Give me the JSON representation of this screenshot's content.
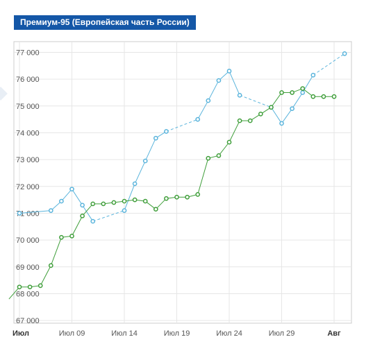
{
  "header": {
    "title": "Премиум-95 (Европейская часть России)"
  },
  "colors": {
    "title_bg": "#1457a7",
    "blue_series": "#5ab4dc",
    "green_series": "#3f9e3a",
    "grid": "#e6e6e6",
    "frame": "#cccccc"
  },
  "chart_data": {
    "type": "line",
    "title": "Премиум-95 (Европейская часть России)",
    "xlabel": "",
    "ylabel": "",
    "ylim": [
      66900,
      77400
    ],
    "xlim": [
      1,
      32.6
    ],
    "grid": true,
    "y_ticks": [
      67000,
      68000,
      69000,
      70000,
      71000,
      72000,
      73000,
      74000,
      75000,
      76000,
      77000
    ],
    "y_tick_labels": [
      "67 000",
      "68 000",
      "69 000",
      "70 000",
      "71 000",
      "72 000",
      "73 000",
      "74 000",
      "75 000",
      "76 000",
      "77 000"
    ],
    "x_ticks": [
      {
        "day": 1,
        "label": "Июл",
        "bold": true
      },
      {
        "day": 6,
        "label": "Июл 09",
        "bold": false
      },
      {
        "day": 11,
        "label": "Июл 14",
        "bold": false
      },
      {
        "day": 16,
        "label": "Июл 19",
        "bold": false
      },
      {
        "day": 21,
        "label": "Июл 24",
        "bold": false
      },
      {
        "day": 26,
        "label": "Июл 29",
        "bold": false
      },
      {
        "day": 31,
        "label": "Авг",
        "bold": true
      }
    ],
    "series": [
      {
        "color": "#5ab4dc",
        "points": [
          [
            1,
            71000
          ],
          [
            4,
            71100
          ],
          [
            5,
            71450
          ],
          [
            6,
            71900
          ],
          [
            7,
            71300
          ],
          [
            8,
            70700
          ],
          [
            11,
            71100
          ],
          [
            12,
            72100
          ],
          [
            13,
            72950
          ],
          [
            14,
            73800
          ],
          [
            15,
            74050
          ],
          [
            18,
            74500
          ],
          [
            19,
            75200
          ],
          [
            20,
            75950
          ],
          [
            21,
            76300
          ],
          [
            22,
            75400
          ],
          [
            25,
            74950
          ],
          [
            26,
            74350
          ],
          [
            27,
            74900
          ],
          [
            28,
            75500
          ],
          [
            29,
            76150
          ],
          [
            32,
            76950
          ]
        ],
        "dashed_gaps": [
          [
            8,
            11
          ],
          [
            15,
            18
          ],
          [
            22,
            25
          ],
          [
            29,
            32
          ]
        ]
      },
      {
        "color": "#3f9e3a",
        "points": [
          [
            0,
            67800
          ],
          [
            1,
            68250
          ],
          [
            2,
            68250
          ],
          [
            3,
            68300
          ],
          [
            4,
            69050
          ],
          [
            5,
            70100
          ],
          [
            6,
            70150
          ],
          [
            7,
            70900
          ],
          [
            8,
            71350
          ],
          [
            9,
            71350
          ],
          [
            10,
            71400
          ],
          [
            11,
            71450
          ],
          [
            12,
            71500
          ],
          [
            13,
            71450
          ],
          [
            14,
            71150
          ],
          [
            15,
            71550
          ],
          [
            16,
            71600
          ],
          [
            17,
            71600
          ],
          [
            18,
            71700
          ],
          [
            19,
            73050
          ],
          [
            20,
            73150
          ],
          [
            21,
            73650
          ],
          [
            22,
            74450
          ],
          [
            23,
            74450
          ],
          [
            24,
            74700
          ],
          [
            25,
            74950
          ],
          [
            26,
            75500
          ],
          [
            27,
            75500
          ],
          [
            28,
            75650
          ],
          [
            29,
            75350
          ],
          [
            30,
            75350
          ],
          [
            31,
            75350
          ]
        ],
        "dashed_gaps": [
          [
            26,
            28
          ],
          [
            28,
            31
          ]
        ]
      }
    ]
  }
}
